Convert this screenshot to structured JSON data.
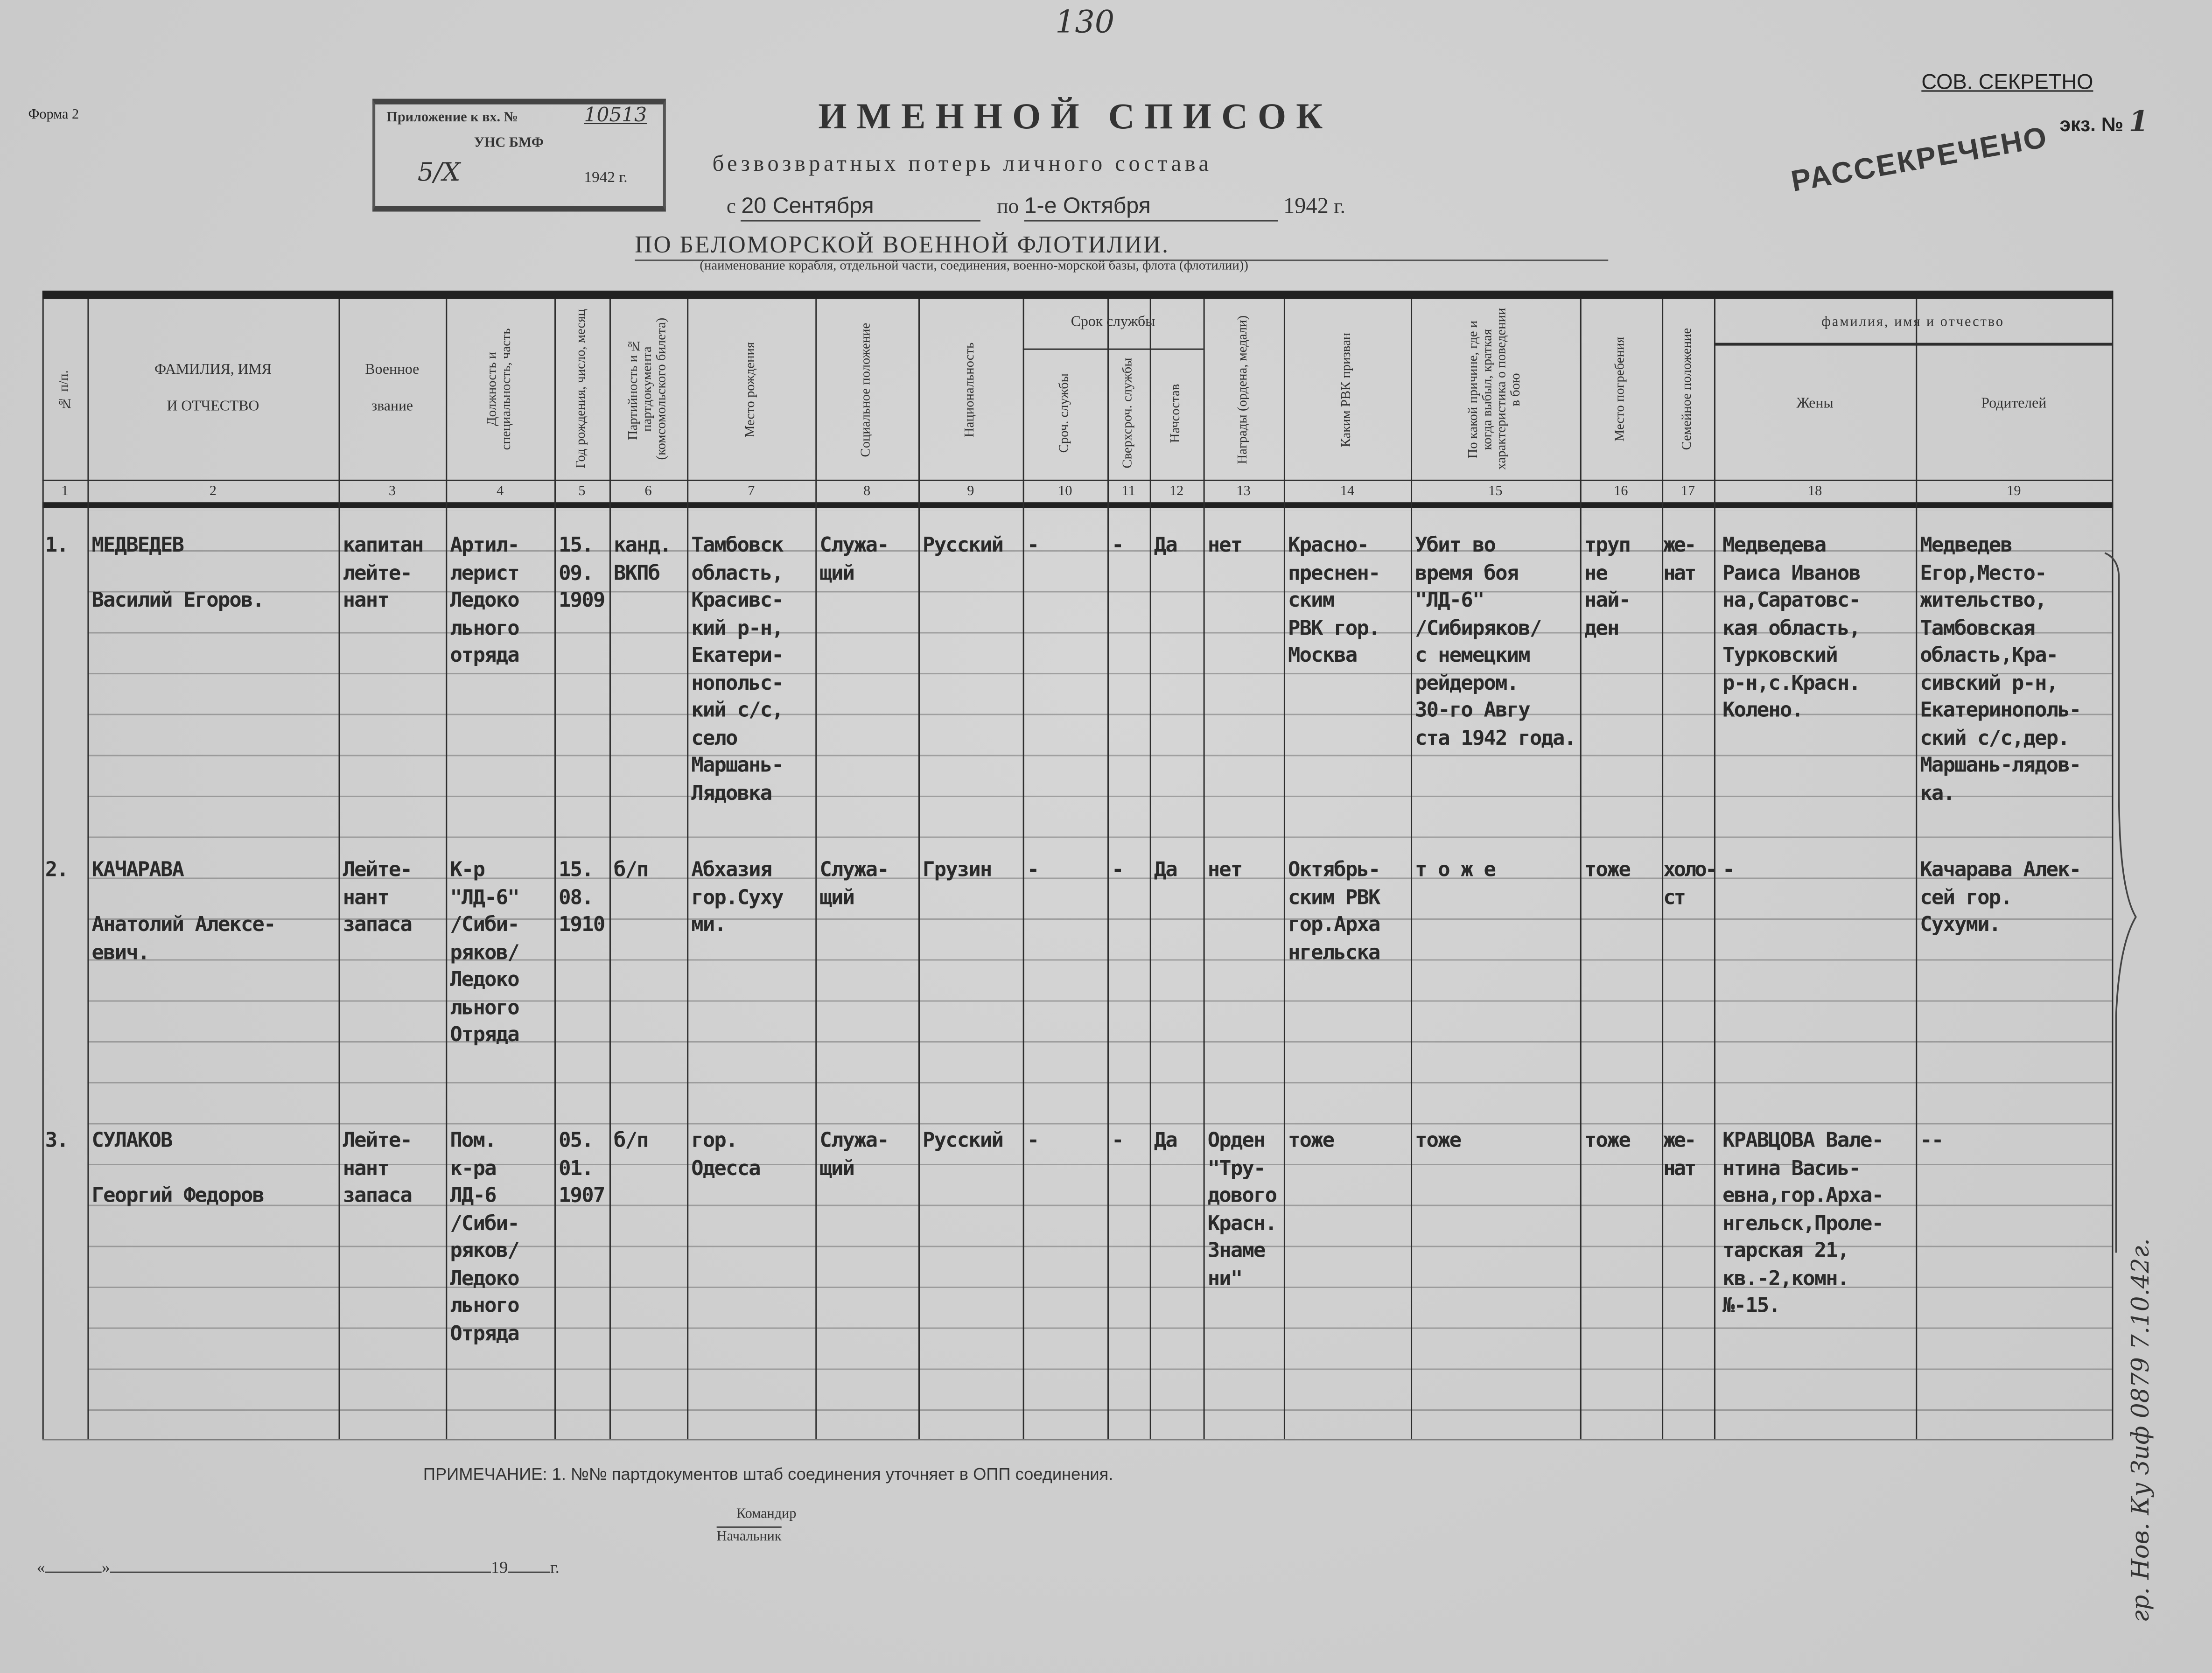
{
  "form_label": "Форма 2",
  "page_number_handwritten": "130",
  "stamp": {
    "line1": "Приложение к вх. №",
    "number": "10513",
    "org": "УНС БМФ",
    "date": "5/X",
    "year": "1942 г."
  },
  "secrecy": {
    "classification": "СОВ. СЕКРЕТНО",
    "copy_label": "экз. №",
    "copy_number": "1",
    "declassified_stamp": "РАССЕКРЕЧЕНО"
  },
  "title": "ИМЕННОЙ СПИСОК",
  "subtitle": "безвозвратных потерь личного состава",
  "period": {
    "from_prefix": "с",
    "from": "20 Сентября",
    "to_prefix": "по",
    "to": "1-е Октября",
    "year": "1942",
    "year_suffix": "г."
  },
  "unit": "ПО БЕЛОМОРСКОЙ ВОЕННОЙ ФЛОТИЛИИ.",
  "unit_caption": "(наименование корабля, отдельной части, соединения, военно-морской базы, флота (флотилии))",
  "table": {
    "group_headers": {
      "service_term": "Срок службы",
      "family_names": "фамилия, имя и отчество"
    },
    "headers": [
      "№ п/п.",
      "ФАМИЛИЯ, ИМЯ\n\nИ ОТЧЕСТВО",
      "Военное\n\nзвание",
      "Должность и специальность, часть",
      "Год рождения, число, месяц",
      "Партийность и № партдокумента (комсомольского билета)",
      "Место рождения",
      "Социальное положение",
      "Национальность",
      "Сроч. службы",
      "Сверхсроч. службы",
      "Начсостав",
      "Награды (ордена, медали)",
      "Каким РВК призван",
      "По какой причине, где и когда выбыл, краткая характеристика о поведении в бою",
      "Место погребения",
      "Семейное положение",
      "Жены",
      "Родителей"
    ],
    "column_numbers": [
      "1",
      "2",
      "3",
      "4",
      "5",
      "6",
      "7",
      "8",
      "9",
      "10",
      "11",
      "12",
      "13",
      "14",
      "15",
      "16",
      "17",
      "18",
      "19"
    ],
    "rows": [
      {
        "cells": [
          "1.",
          "МЕДВЕДЕВ\n\nВасилий Егоров.",
          "капитан\nлейте-\nнант",
          "Артил-\nлерист\nЛедоко\nльного\nотряда",
          "15.\n09.\n1909",
          "канд.\nВКПб",
          "Тамбовск\nобласть,\nКрасивс-\nкий р-н,\nЕкатери-\nнопольс-\nкий с/с,\nсело\nМаршань-\nЛядовка",
          "Служа-\nщий",
          "Русский",
          "-",
          "-",
          "Да",
          "нет",
          "Красно-\nпреснен-\nским\nРВК гор.\nМосква",
          "Убит во\nвремя боя\n\"ЛД-6\"\n/Сибиряков/\nс немецким\nрейдером.\n30-го Авгу\nста 1942 года.",
          "труп\nне\nнай-\nден",
          "же-\nнат",
          "Медведева\nРаиса Иванов\nна,Саратовс-\nкая область,\nТурковский\nр-н,с.Красн.\nКолено.",
          "Медведев\nЕгор,Место-\nжительство,\nТамбовская\nобласть,Кра-\nсивский р-н,\nЕкатеринополь-\nский с/с,дер.\nМаршань-лядов-\nка."
        ]
      },
      {
        "cells": [
          "2.",
          "КАЧАРАВА\n\nАнатолий Алексе-\nевич.",
          "Лейте-\nнант\nзапаса",
          "К-р\n\"ЛД-6\"\n/Сиби-\nряков/\nЛедоко\nльного\nОтряда",
          "15.\n08.\n1910",
          "б/п",
          "Абхазия\nгор.Суху\nми.",
          "Служа-\nщий",
          "Грузин",
          "-",
          "-",
          "Да",
          "нет",
          "Октябрь-\nским РВК\nгор.Арха\nнгельска",
          "т о ж е",
          "тоже",
          "холо-\nст",
          "-",
          "Качарава Алек-\nсей гор.\nСухуми."
        ]
      },
      {
        "cells": [
          "3.",
          "СУЛАКОВ\n\nГеоргий Федоров",
          "Лейте-\nнант\nзапаса",
          "Пом.\nк-ра\nЛД-6\n/Сиби-\nряков/\nЛедоко\nльного\nОтряда",
          "05.\n01.\n1907",
          "б/п",
          "гор.\nОдесса",
          "Служа-\nщий",
          "Русский",
          "-",
          "-",
          "Да",
          "Орден\n\"Тру-\nдового\nКрасн.\nЗнаме\nни\"",
          "тоже",
          "тоже",
          "тоже",
          "же-\nнат",
          "КРАВЦОВА Вале-\nнтина Васиь-\nевна,гор.Арха-\nнгельск,Проле-\nтарская 21,\nкв.-2,комн.\n№-15.",
          "--"
        ]
      }
    ]
  },
  "note": "ПРИМЕЧАНИЕ: 1. №№ партдокументов штаб соединения уточняет в ОПП соединения.",
  "signature": {
    "commander": "Командир",
    "chief": "Начальник"
  },
  "date_line": {
    "open_quote": "«",
    "close_quote": "»",
    "century": "19",
    "suffix": "г."
  },
  "margin_note": "гр. Нов. Ку Зиф 0879 7.10.42г."
}
